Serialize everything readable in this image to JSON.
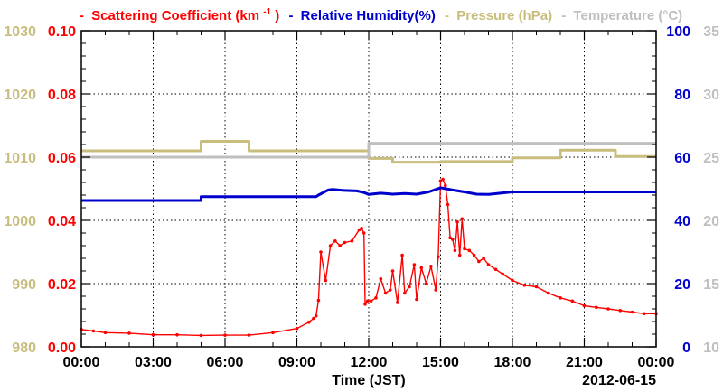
{
  "chart_data": {
    "type": "line",
    "x_axis": {
      "label": "Time (JST)",
      "date_label": "2012-06-15",
      "ticks": [
        "00:00",
        "03:00",
        "06:00",
        "09:00",
        "12:00",
        "15:00",
        "18:00",
        "21:00",
        "00:00"
      ],
      "range_hours": [
        0,
        24
      ]
    },
    "legend": {
      "sc_prefix": "Scattering Coefficient (km",
      "sc_exp": "-1",
      "sc_suffix": ")",
      "rh": "Relative Humidity(%)",
      "pres": "Pressure (hPa)",
      "temp": "Temperature (°C)",
      "dash": "-"
    },
    "y_axes": {
      "pressure": {
        "ticks": [
          "1030",
          "1020",
          "1010",
          "1000",
          "990",
          "980"
        ],
        "range": [
          980,
          1030
        ],
        "color": "#c8bd7c"
      },
      "scattering": {
        "ticks": [
          "0.10",
          "0.08",
          "0.06",
          "0.04",
          "0.02",
          "0.00"
        ],
        "range": [
          0.0,
          0.1
        ],
        "color": "#ff0000"
      },
      "humidity": {
        "ticks": [
          "100",
          "80",
          "60",
          "40",
          "20",
          "0"
        ],
        "range": [
          0,
          100
        ],
        "color": "#0000cc"
      },
      "temperature": {
        "ticks": [
          "35",
          "30",
          "25",
          "20",
          "15",
          "10"
        ],
        "range": [
          10,
          35
        ],
        "color": "#bfbfbf"
      }
    },
    "grid": true,
    "series": [
      {
        "name": "Scattering Coefficient",
        "axis": "scattering",
        "color": "#ff0000",
        "x": [
          0.0,
          0.5,
          1.0,
          2.0,
          3.0,
          4.0,
          5.0,
          6.0,
          7.0,
          8.0,
          9.0,
          9.5,
          9.7,
          9.8,
          9.9,
          10.0,
          10.2,
          10.4,
          10.6,
          10.8,
          11.0,
          11.3,
          11.6,
          11.7,
          11.8,
          11.85,
          11.95,
          12.1,
          12.3,
          12.5,
          12.7,
          12.9,
          13.0,
          13.2,
          13.4,
          13.5,
          13.7,
          13.9,
          14.0,
          14.2,
          14.4,
          14.6,
          14.8,
          14.9,
          15.0,
          15.1,
          15.2,
          15.3,
          15.4,
          15.5,
          15.6,
          15.7,
          15.8,
          15.9,
          16.0,
          16.2,
          16.4,
          16.6,
          16.8,
          17.0,
          17.3,
          17.6,
          18.0,
          18.5,
          19.0,
          19.5,
          20.0,
          20.5,
          21.0,
          21.5,
          22.0,
          22.5,
          23.0,
          23.5,
          24.0
        ],
        "values": [
          0.0055,
          0.005,
          0.0045,
          0.0043,
          0.0038,
          0.0038,
          0.0036,
          0.0037,
          0.0037,
          0.0045,
          0.0058,
          0.0078,
          0.009,
          0.0098,
          0.0147,
          0.03,
          0.021,
          0.032,
          0.0335,
          0.032,
          0.033,
          0.0335,
          0.037,
          0.0375,
          0.036,
          0.0135,
          0.0145,
          0.0145,
          0.0155,
          0.0215,
          0.017,
          0.018,
          0.024,
          0.014,
          0.029,
          0.017,
          0.019,
          0.026,
          0.015,
          0.025,
          0.02,
          0.0255,
          0.018,
          0.0285,
          0.0525,
          0.053,
          0.051,
          0.045,
          0.0345,
          0.034,
          0.0305,
          0.0395,
          0.029,
          0.0405,
          0.031,
          0.0305,
          0.029,
          0.027,
          0.028,
          0.026,
          0.0245,
          0.023,
          0.021,
          0.0195,
          0.019,
          0.017,
          0.0155,
          0.0145,
          0.013,
          0.0125,
          0.012,
          0.0115,
          0.011,
          0.0105,
          0.0105
        ]
      },
      {
        "name": "Relative Humidity",
        "axis": "humidity",
        "color": "#0000cc",
        "x": [
          0.0,
          5.0,
          5.0,
          9.8,
          9.9,
          10.3,
          10.5,
          10.9,
          11.5,
          11.8,
          12.0,
          12.5,
          13.0,
          13.5,
          14.0,
          14.5,
          15.0,
          15.5,
          16.0,
          16.5,
          17.0,
          17.5,
          18.0,
          21.0,
          24.0
        ],
        "values": [
          46.3,
          46.3,
          47.5,
          47.5,
          48.0,
          49.6,
          49.8,
          49.5,
          49.3,
          48.8,
          48.2,
          48.6,
          48.3,
          48.5,
          48.3,
          49.0,
          50.3,
          49.6,
          49.0,
          48.3,
          48.2,
          48.6,
          49.0,
          49.0,
          49.0
        ]
      },
      {
        "name": "Pressure",
        "axis": "pressure",
        "color": "#c8bd7c",
        "x": [
          0.0,
          5.0,
          5.0,
          7.0,
          7.0,
          12.0,
          12.0,
          13.0,
          13.0,
          15.0,
          15.0,
          18.0,
          18.0,
          20.0,
          20.0,
          22.3,
          22.3,
          24.0
        ],
        "values": [
          1011.0,
          1011.0,
          1012.5,
          1012.5,
          1011.0,
          1011.0,
          1009.8,
          1009.8,
          1009.2,
          1009.2,
          1009.3,
          1009.3,
          1009.9,
          1009.9,
          1011.1,
          1011.1,
          1010.1,
          1010.1
        ]
      },
      {
        "name": "Temperature",
        "axis": "temperature",
        "color": "#bfbfbf",
        "x": [
          0.0,
          12.0,
          12.0,
          24.0
        ],
        "values": [
          25.0,
          25.0,
          26.1,
          26.1
        ]
      }
    ]
  }
}
